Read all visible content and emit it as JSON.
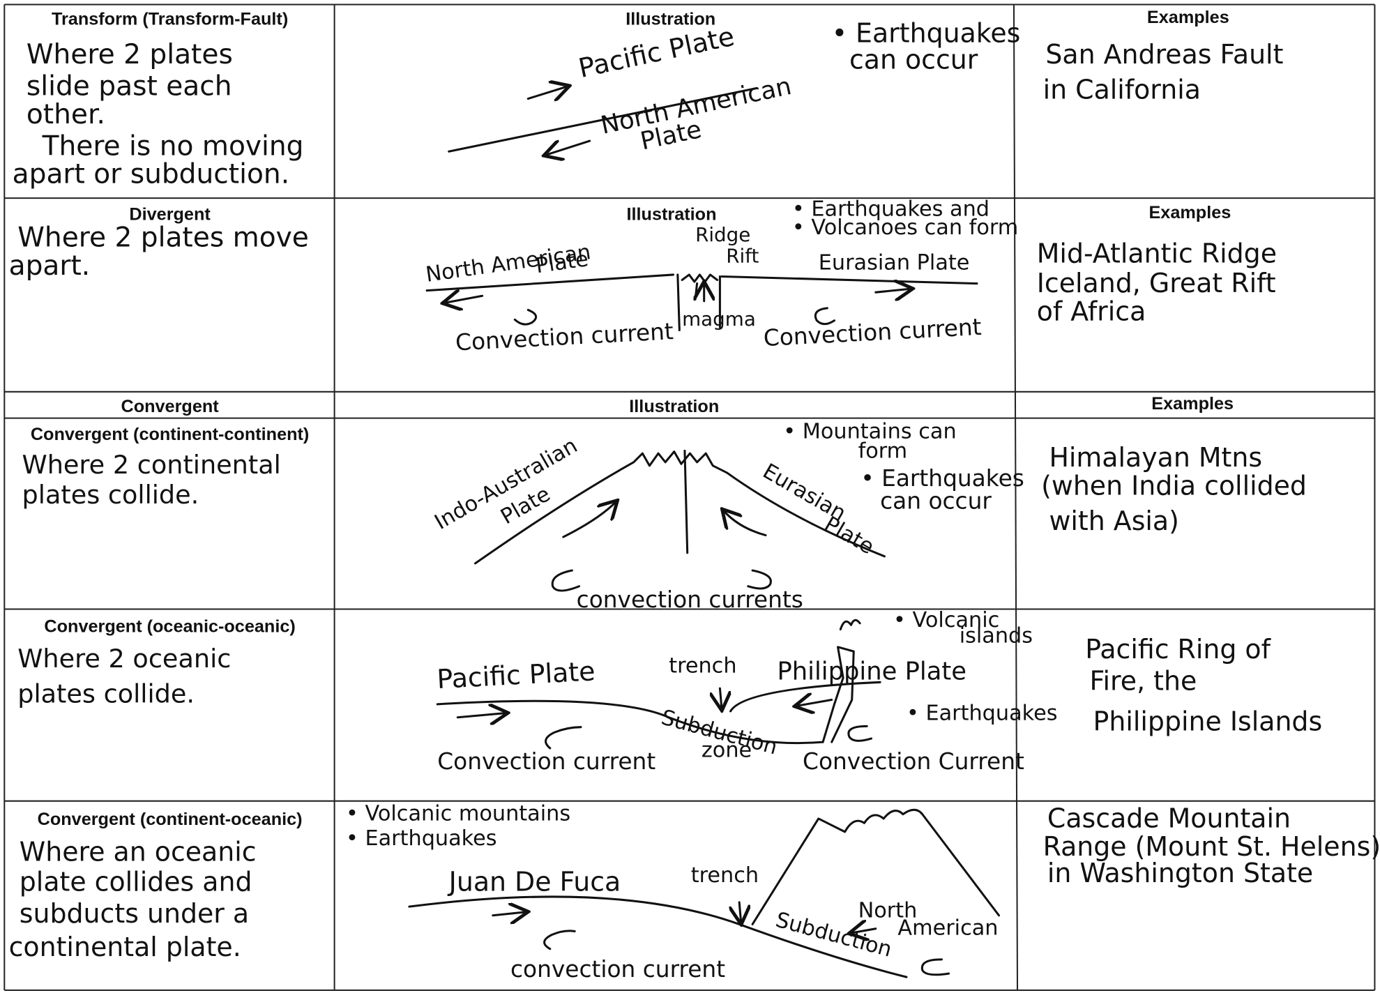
{
  "rows": [
    {
      "heading": "Transform (Transform-Fault)",
      "description": [
        "Where 2 plates",
        "slide past each",
        "other.",
        "There is no moving",
        "apart or subduction."
      ],
      "illustration_heading": "Illustration",
      "labels": [
        "Pacific Plate",
        "North American",
        "Plate",
        "• Earthquakes",
        "can occur"
      ],
      "examples_heading": "Examples",
      "examples": [
        "San Andreas Fault",
        "in California"
      ]
    },
    {
      "heading": "Divergent",
      "description": [
        "Where 2 plates move",
        "apart."
      ],
      "illustration_heading": "Illustration",
      "labels": [
        "• Earthquakes and",
        "• Volcanoes can form",
        "Ridge",
        "Rift",
        "North American",
        "Plate",
        "Eurasian Plate",
        "magma",
        "Convection current",
        "Convection current"
      ],
      "examples_heading": "Examples",
      "examples": [
        "Mid-Atlantic Ridge",
        "Iceland, Great Rift",
        "of Africa"
      ]
    },
    {
      "heading": "Convergent (continent-continent)",
      "description": [
        "Where 2 continental",
        "plates collide."
      ],
      "labels": [
        "Indo-Australian",
        "Plate",
        "• Mountains can",
        "form",
        "• Earthquakes",
        "can occur",
        "Eurasian",
        "Plate",
        "convection currents"
      ],
      "examples": [
        "Himalayan Mtns",
        "(when India collided",
        "with Asia)"
      ]
    },
    {
      "heading": "Convergent (oceanic-oceanic)",
      "description": [
        "Where 2 oceanic",
        "plates collide."
      ],
      "labels": [
        "• Volcanic",
        "islands",
        "Pacific Plate",
        "trench",
        "Philippine Plate",
        "Subduction",
        "zone",
        "• Earthquakes",
        "Convection current",
        "Convection Current"
      ],
      "examples": [
        "Pacific Ring of",
        "Fire, the",
        "Philippine Islands"
      ]
    },
    {
      "heading": "Convergent (continent-oceanic)",
      "description": [
        "Where an oceanic",
        "plate collides and",
        "subducts under a",
        "continental plate."
      ],
      "labels": [
        "• Volcanic mountains",
        "• Earthquakes",
        "Juan De Fuca",
        "trench",
        "North",
        "American",
        "Subduction",
        "convection current"
      ],
      "examples": [
        "Cascade Mountain",
        "Range (Mount St. Helens)",
        "in Washington State"
      ]
    }
  ],
  "convergent_header": {
    "heading": "Convergent",
    "illustration_heading": "Illustration",
    "examples_heading": "Examples"
  }
}
